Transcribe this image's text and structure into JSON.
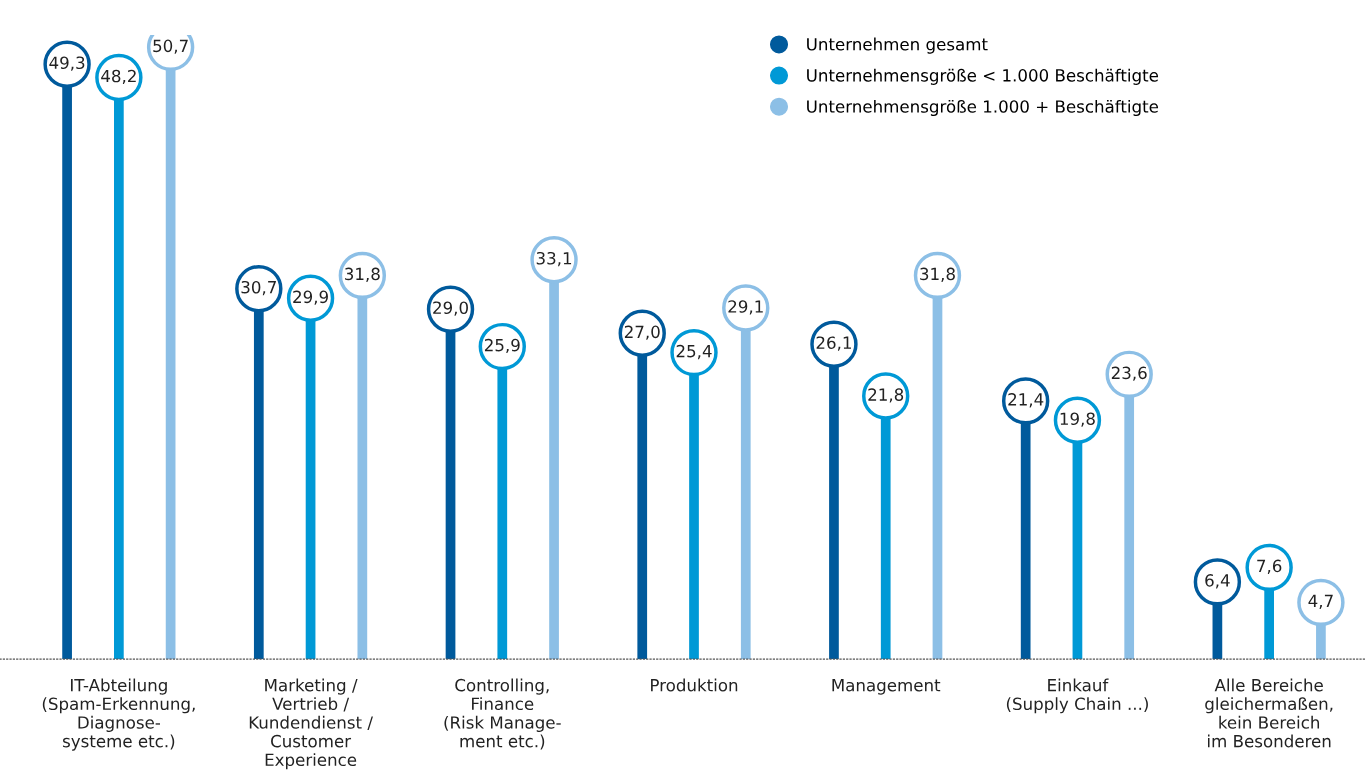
{
  "chart_data": {
    "type": "lollipop",
    "categories": [
      "IT-Abteilung\n(Spam-Erkennung,\nDiagnose-\nsysteme etc.)",
      "Marketing /\nVertrieb /\nKundendienst /\nCustomer\nExperience",
      "Controlling,\nFinance\n(Risk Manage-\nment etc.)",
      "Produktion",
      "Management",
      "Einkauf\n(Supply Chain ...)",
      "Alle Bereiche\ngleichermaßen,\nkein Bereich\nim Besonderen"
    ],
    "series": [
      {
        "name": "Unternehmen gesamt",
        "color": "#005a9c",
        "values": [
          49.3,
          30.7,
          29.0,
          27.0,
          26.1,
          21.4,
          6.4
        ],
        "value_labels": [
          "49,3",
          "30,7",
          "29,0",
          "27,0",
          "26,1",
          "21,4",
          "6,4"
        ]
      },
      {
        "name": "Unternehmensgröße < 1.000 Beschäftigte",
        "color": "#0099d6",
        "values": [
          48.2,
          29.9,
          25.9,
          25.4,
          21.8,
          19.8,
          7.6
        ],
        "value_labels": [
          "48,2",
          "29,9",
          "25,9",
          "25,4",
          "21,8",
          "19,8",
          "7,6"
        ]
      },
      {
        "name": "Unternehmensgröße 1.000 + Beschäftigte",
        "color": "#8cbfe6",
        "values": [
          50.7,
          31.8,
          33.1,
          29.1,
          31.8,
          23.6,
          4.7
        ],
        "value_labels": [
          "50,7",
          "31,8",
          "33,1",
          "29,1",
          "31,8",
          "23,6",
          "4,7"
        ]
      }
    ],
    "legend": "top right",
    "grid": false,
    "marker": "circle"
  }
}
